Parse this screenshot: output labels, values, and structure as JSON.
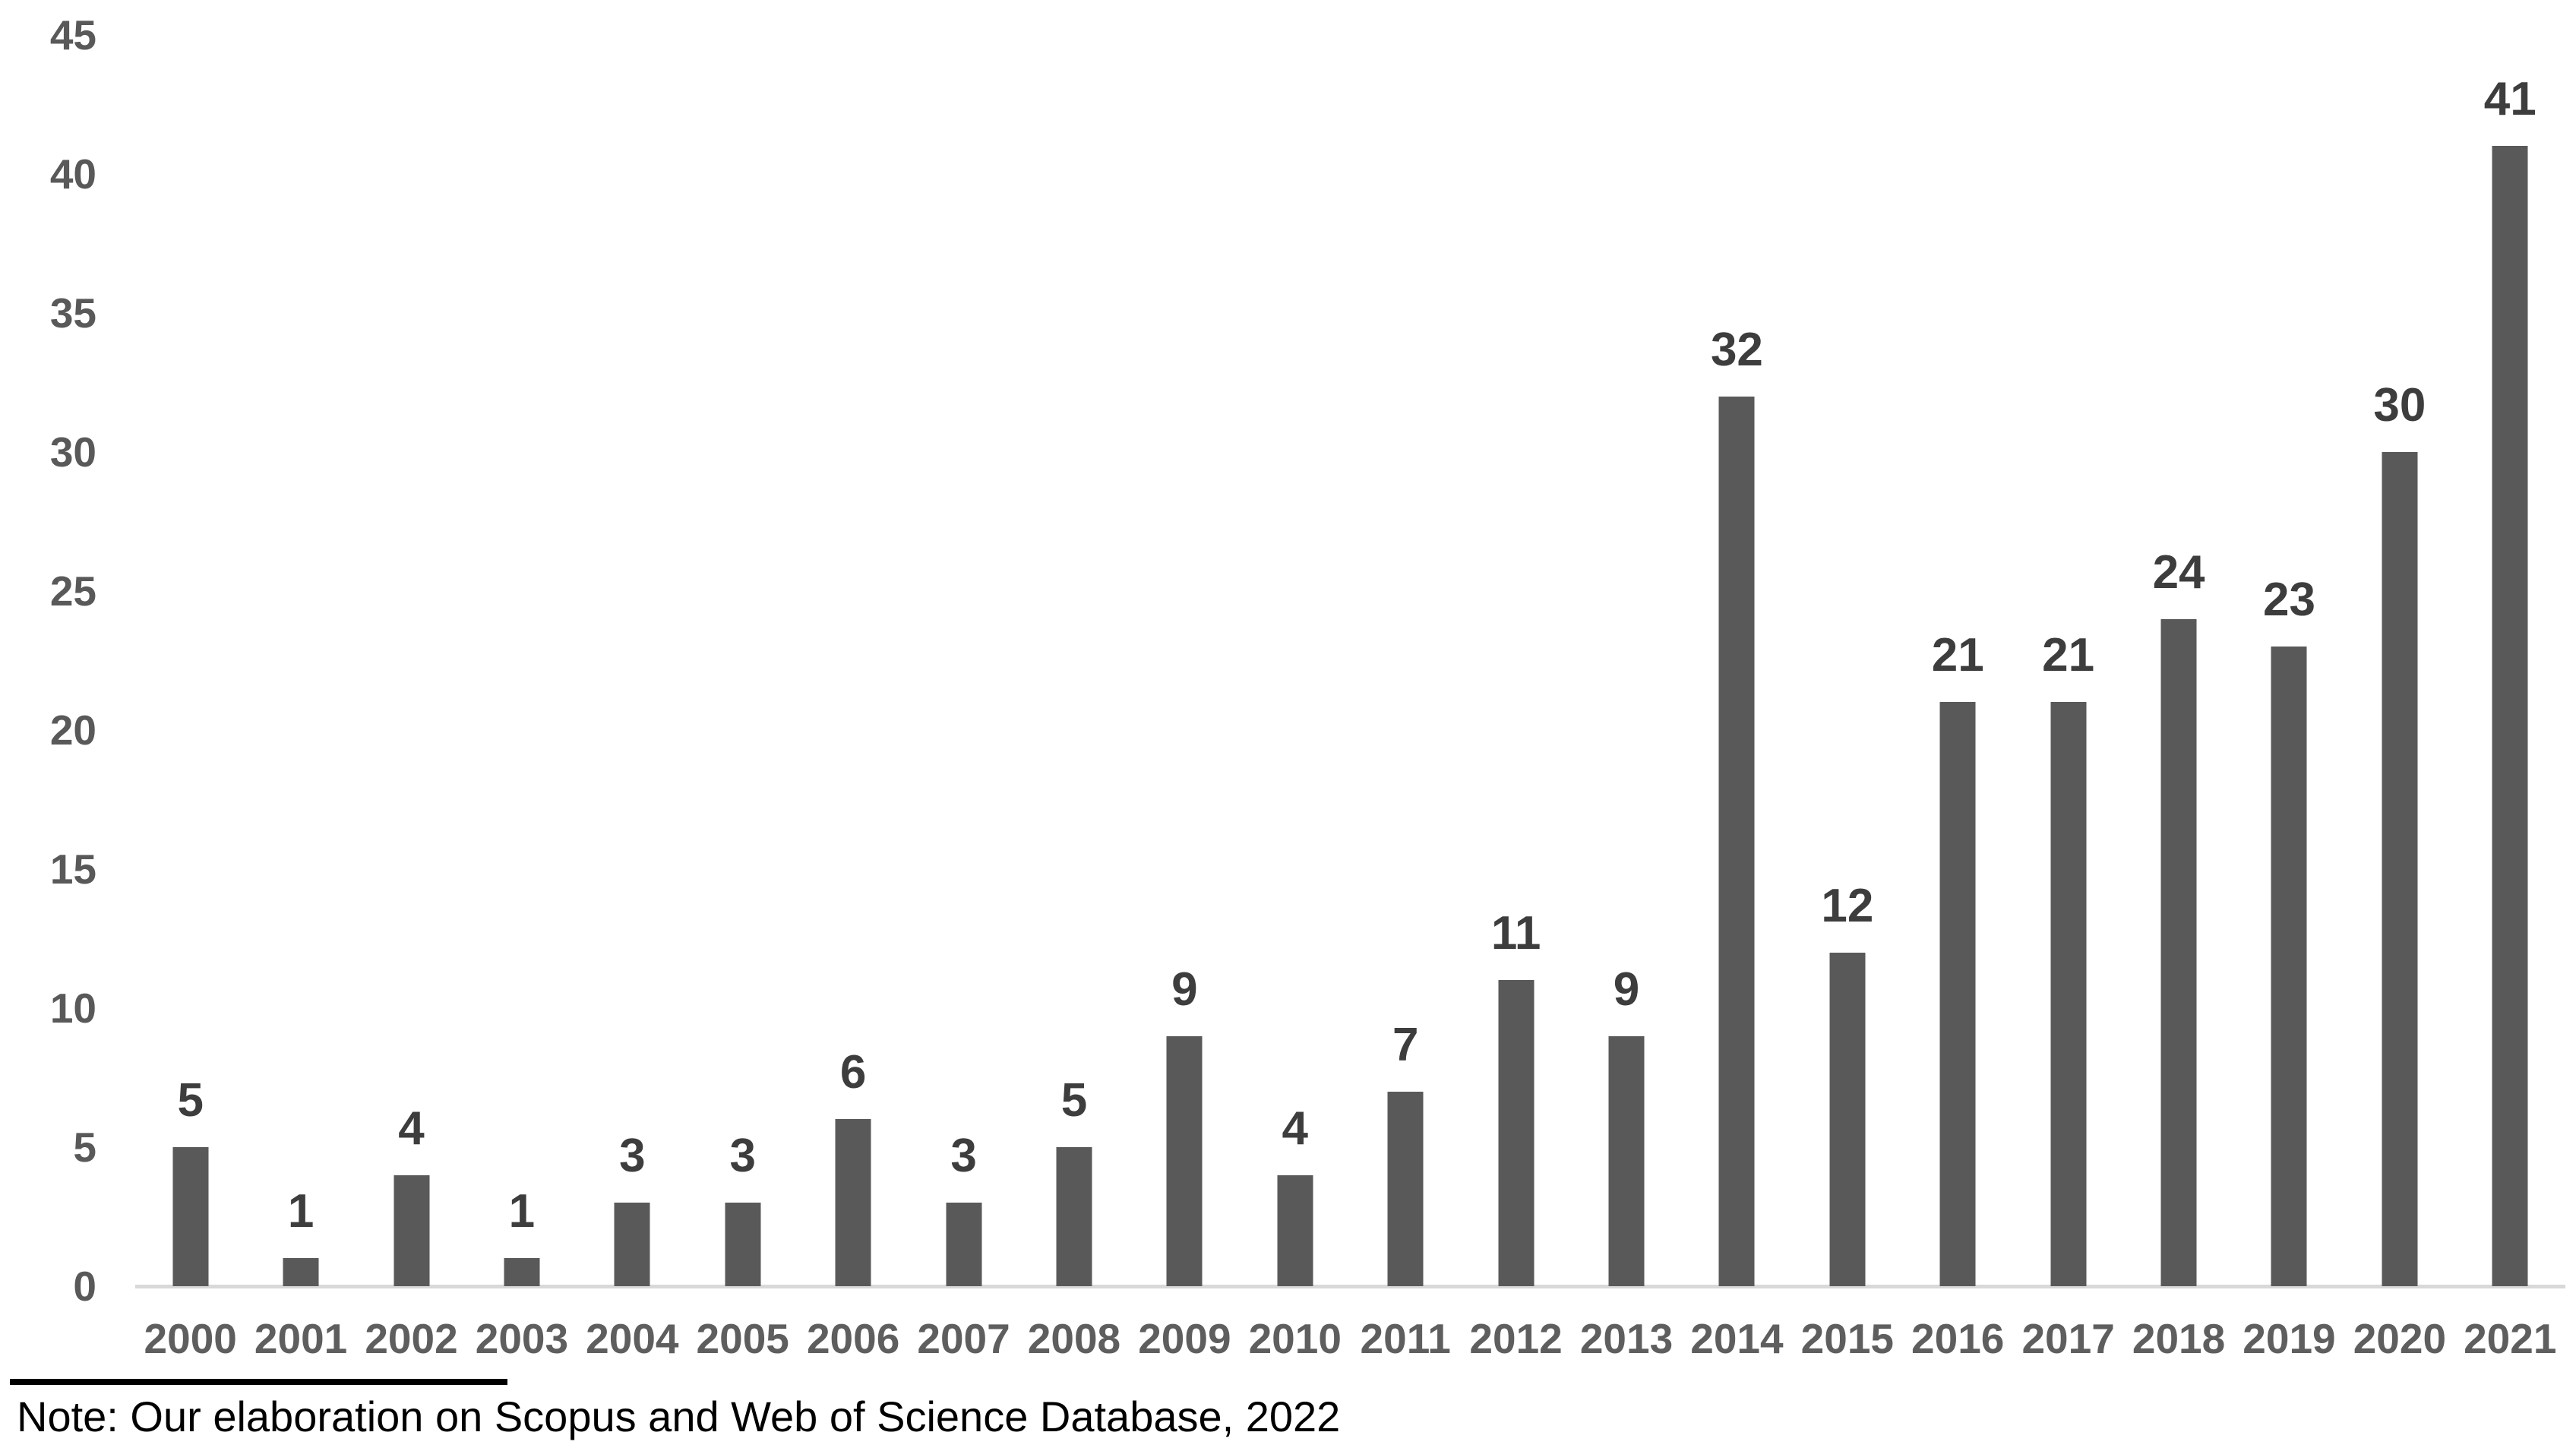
{
  "chart_data": {
    "type": "bar",
    "categories": [
      "2000",
      "2001",
      "2002",
      "2003",
      "2004",
      "2005",
      "2006",
      "2007",
      "2008",
      "2009",
      "2010",
      "2011",
      "2012",
      "2013",
      "2014",
      "2015",
      "2016",
      "2017",
      "2018",
      "2019",
      "2020",
      "2021"
    ],
    "values": [
      5,
      1,
      4,
      1,
      3,
      3,
      6,
      3,
      5,
      9,
      4,
      7,
      11,
      9,
      32,
      12,
      21,
      21,
      24,
      23,
      30,
      41
    ],
    "title": "",
    "xlabel": "",
    "ylabel": "",
    "ylim": [
      0,
      45
    ],
    "y_ticks": [
      0,
      5,
      10,
      15,
      20,
      25,
      30,
      35,
      40,
      45
    ],
    "grid": false,
    "legend": false,
    "data_labels": true,
    "bar_color": "#595959",
    "data_label_color": "#3d3d3d",
    "tick_label_color": "#595959",
    "axis_line_color": "#d9d9d9"
  },
  "note": {
    "text": "Note: Our elaboration on Scopus and Web of Science Database, 2022"
  }
}
